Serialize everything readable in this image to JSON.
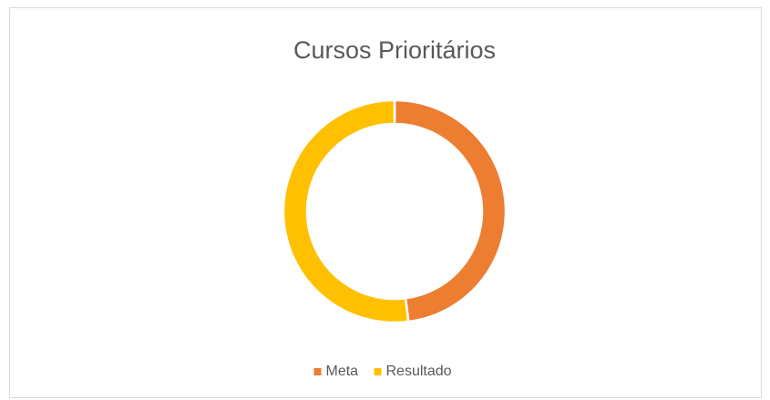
{
  "chart_data": {
    "type": "donut",
    "title": "Cursos Prioritários",
    "categories": [
      "Meta",
      "Resultado"
    ],
    "values": [
      48,
      52
    ],
    "colors": [
      "#ed7d31",
      "#ffc000"
    ],
    "legend": "bottom"
  }
}
